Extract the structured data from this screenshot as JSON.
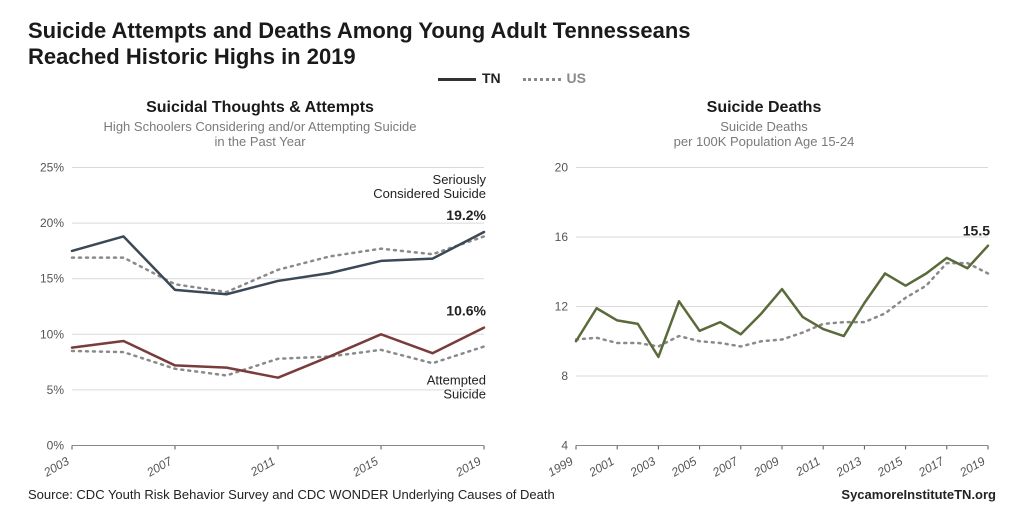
{
  "title_line1": "Suicide Attempts and Deaths Among Young Adult Tennesseans",
  "title_line2": "Reached Historic Highs in 2019",
  "legend": {
    "tn": "TN",
    "us": "US"
  },
  "footer_source": "Source: CDC Youth Risk Behavior Survey and CDC WONDER Underlying Causes of Death",
  "footer_org": "SycamoreInstituteTN.org",
  "colors": {
    "title": "#1a1a1a",
    "subtitle": "#7a7a7a",
    "tn_dark": "#3b4856",
    "us_dot": "#8a8a8a",
    "grid": "#d9d9d9",
    "axis": "#555555",
    "considered_tn": "#3b4856",
    "attempted_tn": "#7a3b3b",
    "deaths_tn": "#5a6a3a",
    "background": "#ffffff"
  },
  "left_chart": {
    "title": "Suicidal Thoughts & Attempts",
    "subtitle": "High Schoolers Considering and/or Attempting Suicide\nin the Past Year",
    "y": {
      "min": 0,
      "max": 25,
      "step": 5,
      "suffix": "%"
    },
    "x_ticks": [
      2003,
      2007,
      2011,
      2015,
      2019
    ],
    "x_domain": [
      2003,
      2019
    ],
    "label_considered": "Seriously\nConsidered Suicide",
    "label_attempted": "Attempted\nSuicide",
    "end_label_considered": "19.2%",
    "end_label_attempted": "10.6%",
    "series": {
      "considered_tn": {
        "2003": 17.5,
        "2005": 18.8,
        "2007": 14.0,
        "2009": 13.6,
        "2011": 14.8,
        "2013": 15.5,
        "2015": 16.6,
        "2017": 16.8,
        "2019": 19.2
      },
      "considered_us": {
        "2003": 16.9,
        "2005": 16.9,
        "2007": 14.5,
        "2009": 13.8,
        "2011": 15.8,
        "2013": 17.0,
        "2015": 17.7,
        "2017": 17.2,
        "2019": 18.8
      },
      "attempted_tn": {
        "2003": 8.8,
        "2005": 9.4,
        "2007": 7.2,
        "2009": 7.0,
        "2011": 6.1,
        "2013": 8.0,
        "2015": 10.0,
        "2017": 8.3,
        "2019": 10.6
      },
      "attempted_us": {
        "2003": 8.5,
        "2005": 8.4,
        "2007": 6.9,
        "2009": 6.3,
        "2011": 7.8,
        "2013": 8.0,
        "2015": 8.6,
        "2017": 7.4,
        "2019": 8.9
      }
    },
    "line_width_tn": 2.5,
    "line_width_us": 2.5,
    "tick_fontsize": 12,
    "annotation_fontsize": 13,
    "endlabel_fontsize": 14
  },
  "right_chart": {
    "title": "Suicide Deaths",
    "subtitle": "Suicide Deaths\nper 100K Population Age 15-24",
    "y": {
      "min": 4,
      "max": 20,
      "step": 4,
      "suffix": ""
    },
    "x_ticks": [
      1999,
      2001,
      2003,
      2005,
      2007,
      2009,
      2011,
      2013,
      2015,
      2017,
      2019
    ],
    "x_domain": [
      1999,
      2019
    ],
    "end_label": "15.5",
    "series": {
      "deaths_tn": {
        "1999": 10.0,
        "2000": 11.9,
        "2001": 11.2,
        "2002": 11.0,
        "2003": 9.1,
        "2004": 12.3,
        "2005": 10.6,
        "2006": 11.1,
        "2007": 10.4,
        "2008": 11.6,
        "2009": 13.0,
        "2010": 11.4,
        "2011": 10.7,
        "2012": 10.3,
        "2013": 12.2,
        "2014": 13.9,
        "2015": 13.2,
        "2016": 13.9,
        "2017": 14.8,
        "2018": 14.2,
        "2019": 15.5
      },
      "deaths_us": {
        "1999": 10.1,
        "2000": 10.2,
        "2001": 9.9,
        "2002": 9.9,
        "2003": 9.7,
        "2004": 10.3,
        "2005": 10.0,
        "2006": 9.9,
        "2007": 9.7,
        "2008": 10.0,
        "2009": 10.1,
        "2010": 10.5,
        "2011": 11.0,
        "2012": 11.1,
        "2013": 11.1,
        "2014": 11.6,
        "2015": 12.5,
        "2016": 13.2,
        "2017": 14.5,
        "2018": 14.5,
        "2019": 13.9
      }
    },
    "line_width_tn": 2.5,
    "line_width_us": 2.5,
    "tick_fontsize": 12,
    "endlabel_fontsize": 14
  }
}
